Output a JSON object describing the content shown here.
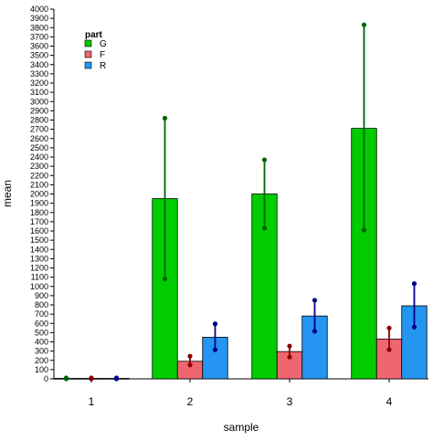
{
  "chart_data": {
    "type": "bar",
    "title": "",
    "xlabel": "sample",
    "ylabel": "mean",
    "ylim": [
      0,
      4000
    ],
    "y_ticks": [
      0,
      100,
      200,
      300,
      400,
      500,
      600,
      700,
      800,
      900,
      1000,
      1100,
      1200,
      1300,
      1400,
      1500,
      1600,
      1700,
      1800,
      1900,
      2000,
      2100,
      2200,
      2300,
      2400,
      2500,
      2600,
      2700,
      2800,
      2900,
      3000,
      3100,
      3200,
      3300,
      3400,
      3500,
      3600,
      3700,
      3800,
      3900,
      4000
    ],
    "categories": [
      "1",
      "2",
      "3",
      "4"
    ],
    "grid": false,
    "legend": {
      "title": "part",
      "position": "top-left"
    },
    "series": [
      {
        "name": "G",
        "color": "#00cc00",
        "error_color": "#006400",
        "values": [
          5,
          1950,
          2000,
          2710
        ],
        "error_low": [
          0,
          1080,
          1630,
          1610
        ],
        "error_high": [
          10,
          2820,
          2370,
          3830
        ]
      },
      {
        "name": "F",
        "color": "#f06670",
        "error_color": "#8b0000",
        "values": [
          5,
          190,
          295,
          430
        ],
        "error_low": [
          0,
          150,
          235,
          315
        ],
        "error_high": [
          10,
          245,
          355,
          550
        ]
      },
      {
        "name": "R",
        "color": "#2495f0",
        "error_color": "#00008b",
        "values": [
          5,
          450,
          680,
          790
        ],
        "error_low": [
          0,
          315,
          515,
          560
        ],
        "error_high": [
          10,
          595,
          850,
          1030
        ]
      }
    ]
  }
}
